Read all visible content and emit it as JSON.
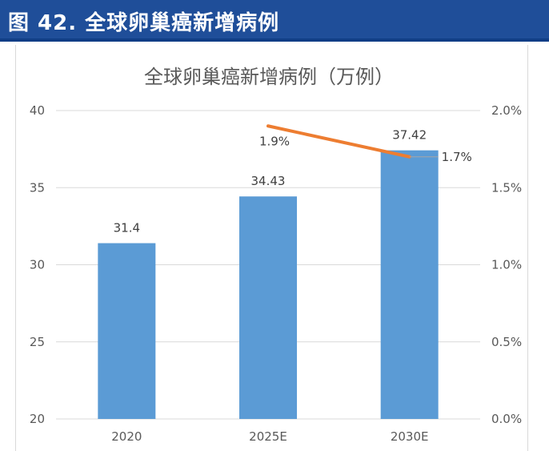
{
  "header": {
    "title": "图 42. 全球卵巢癌新增病例"
  },
  "chart_data": {
    "type": "bar",
    "title": "全球卵巢癌新增病例（万例）",
    "categories": [
      "2020",
      "2025E",
      "2030E"
    ],
    "series": [
      {
        "type": "bar",
        "axis": "left",
        "values": [
          31.4,
          34.43,
          37.42
        ],
        "labels": [
          "31.4",
          "34.43",
          "37.42"
        ],
        "color": "#5b9bd5"
      },
      {
        "type": "line",
        "axis": "right",
        "values": [
          null,
          1.9,
          1.7
        ],
        "labels": [
          "",
          "1.9%",
          "1.7%"
        ],
        "color": "#ed7d31"
      }
    ],
    "ylim": [
      20,
      40
    ],
    "yticks": [
      "20",
      "25",
      "30",
      "35",
      "40"
    ],
    "y2lim": [
      0,
      2.0
    ],
    "y2ticks": [
      "0.0%",
      "0.5%",
      "1.0%",
      "1.5%",
      "2.0%"
    ],
    "grid": true,
    "legend": "none"
  }
}
